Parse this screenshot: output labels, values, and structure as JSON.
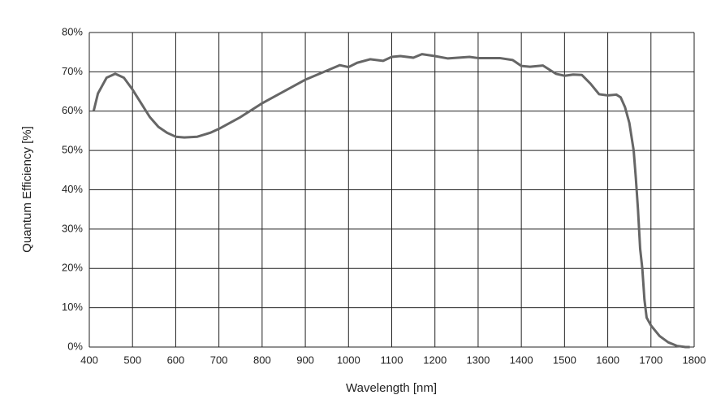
{
  "chart_data": {
    "type": "line",
    "xlabel": "Wavelength [nm]",
    "ylabel": "Quantum Efficiency [%]",
    "x": [
      410,
      420,
      440,
      460,
      480,
      500,
      520,
      540,
      560,
      580,
      600,
      620,
      650,
      680,
      700,
      750,
      800,
      850,
      900,
      950,
      980,
      1000,
      1020,
      1050,
      1080,
      1100,
      1120,
      1150,
      1170,
      1200,
      1230,
      1280,
      1300,
      1350,
      1380,
      1400,
      1420,
      1450,
      1480,
      1500,
      1520,
      1540,
      1560,
      1580,
      1600,
      1620,
      1630,
      1640,
      1650,
      1660,
      1665,
      1670,
      1675,
      1680,
      1685,
      1690,
      1700,
      1720,
      1740,
      1760,
      1780,
      1790
    ],
    "series": [
      {
        "color": "#666666",
        "values": [
          60,
          64.5,
          68.5,
          69.5,
          68.5,
          65.5,
          62,
          58.5,
          56,
          54.5,
          53.5,
          53.3,
          53.5,
          54.5,
          55.5,
          58.5,
          62,
          65,
          68,
          70.3,
          71.7,
          71.2,
          72.3,
          73.2,
          72.8,
          73.8,
          74,
          73.6,
          74.5,
          74,
          73.4,
          73.8,
          73.5,
          73.5,
          73,
          71.5,
          71.3,
          71.6,
          69.5,
          69,
          69.3,
          69.2,
          67,
          64.3,
          64,
          64.2,
          63.5,
          61,
          57,
          50,
          43,
          35,
          25,
          20,
          12,
          7.5,
          5.5,
          2.8,
          1.2,
          0.3,
          0,
          0
        ]
      }
    ],
    "xlim": [
      400,
      1800
    ],
    "xticks": [
      400,
      500,
      600,
      700,
      800,
      900,
      1000,
      1100,
      1200,
      1300,
      1400,
      1500,
      1600,
      1700,
      1800
    ],
    "ylim": [
      0,
      80
    ],
    "yticks": [
      {
        "value": 0,
        "label": "0%"
      },
      {
        "value": 10,
        "label": "10%"
      },
      {
        "value": 20,
        "label": "20%"
      },
      {
        "value": 30,
        "label": "30%"
      },
      {
        "value": 40,
        "label": "40%"
      },
      {
        "value": 50,
        "label": "50%"
      },
      {
        "value": 60,
        "label": "60%"
      },
      {
        "value": 70,
        "label": "70%"
      },
      {
        "value": 80,
        "label": "80%"
      }
    ],
    "grid": true
  }
}
